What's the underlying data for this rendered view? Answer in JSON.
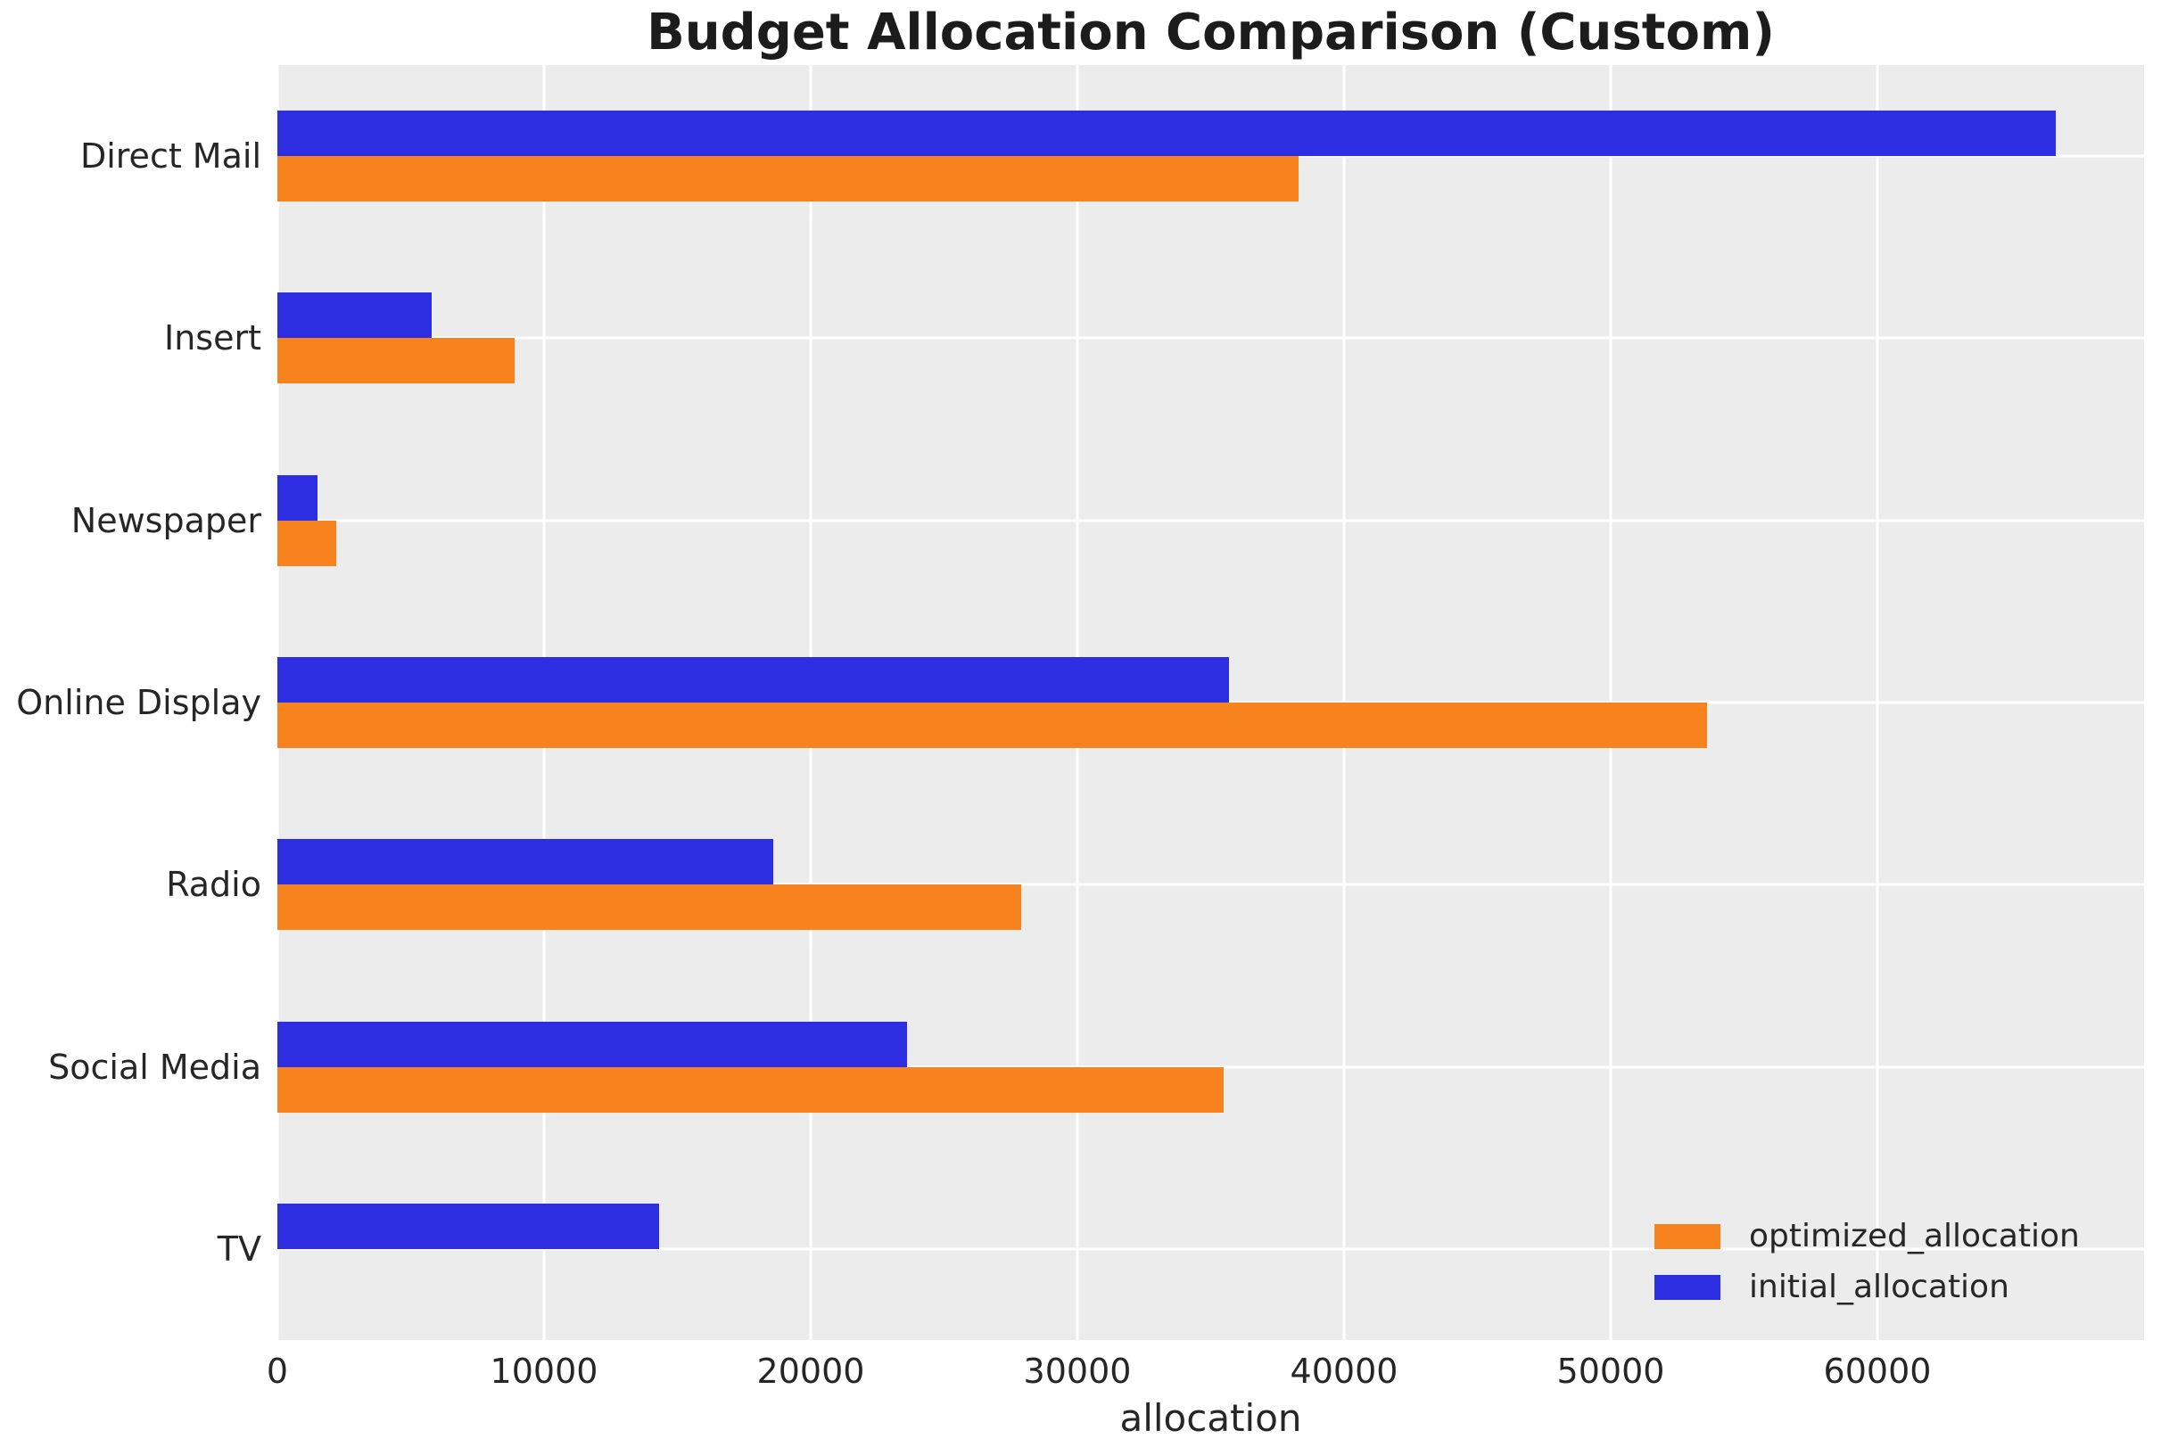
{
  "chart_data": {
    "type": "bar",
    "orientation": "horizontal",
    "title": "Budget Allocation Comparison (Custom)",
    "xlabel": "allocation",
    "ylabel": "",
    "categories": [
      "Direct Mail",
      "Insert",
      "Newspaper",
      "Online Display",
      "Radio",
      "Social Media",
      "TV"
    ],
    "series": [
      {
        "name": "optimized_allocation",
        "color": "#f8821e",
        "group_position": "bottom",
        "values": [
          38300,
          8900,
          2200,
          53600,
          27900,
          35500,
          0
        ]
      },
      {
        "name": "initial_allocation",
        "color": "#2d2de2",
        "group_position": "top",
        "values": [
          66700,
          5800,
          1500,
          35700,
          18600,
          23600,
          14300
        ]
      }
    ],
    "x_ticks": [
      0,
      10000,
      20000,
      30000,
      40000,
      50000,
      60000
    ],
    "xlim": [
      0,
      70000
    ],
    "grid": true,
    "legend_position": "lower right",
    "plot_background_color": "#ececec",
    "grid_color": "#ffffff",
    "text_color": "#262626"
  }
}
